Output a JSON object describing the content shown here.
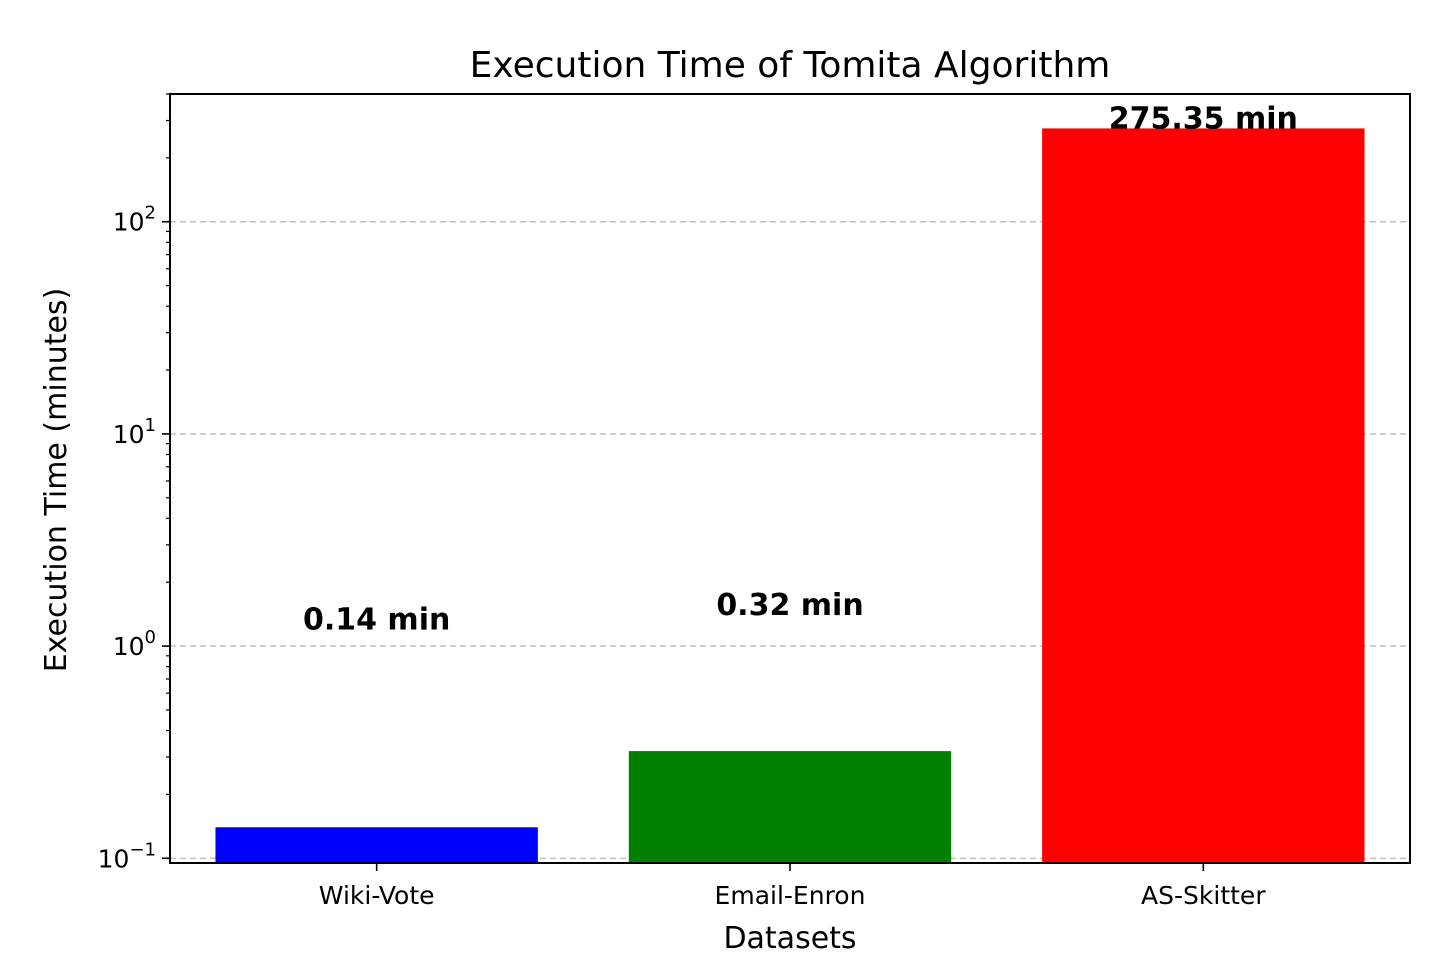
{
  "chart_data": {
    "type": "bar",
    "title": "Execution Time of Tomita Algorithm",
    "xlabel": "Datasets",
    "ylabel": "Execution Time (minutes)",
    "yscale": "log",
    "ylim": [
      0.095,
      400
    ],
    "grid": "y-dashed",
    "categories": [
      "Wiki-Vote",
      "Email-Enron",
      "AS-Skitter"
    ],
    "values": [
      0.14,
      0.32,
      275.35
    ],
    "colors": [
      "#0000ff",
      "#008000",
      "#ff0000"
    ],
    "data_labels": [
      "0.14 min",
      "0.32 min",
      "275.35 min"
    ],
    "label_values": [
      1.2,
      1.4,
      275.35
    ],
    "y_ticks": [
      {
        "value": 0.1,
        "base": "10",
        "exp": "−1"
      },
      {
        "value": 1,
        "base": "10",
        "exp": "0"
      },
      {
        "value": 10,
        "base": "10",
        "exp": "1"
      },
      {
        "value": 100,
        "base": "10",
        "exp": "2"
      }
    ]
  }
}
